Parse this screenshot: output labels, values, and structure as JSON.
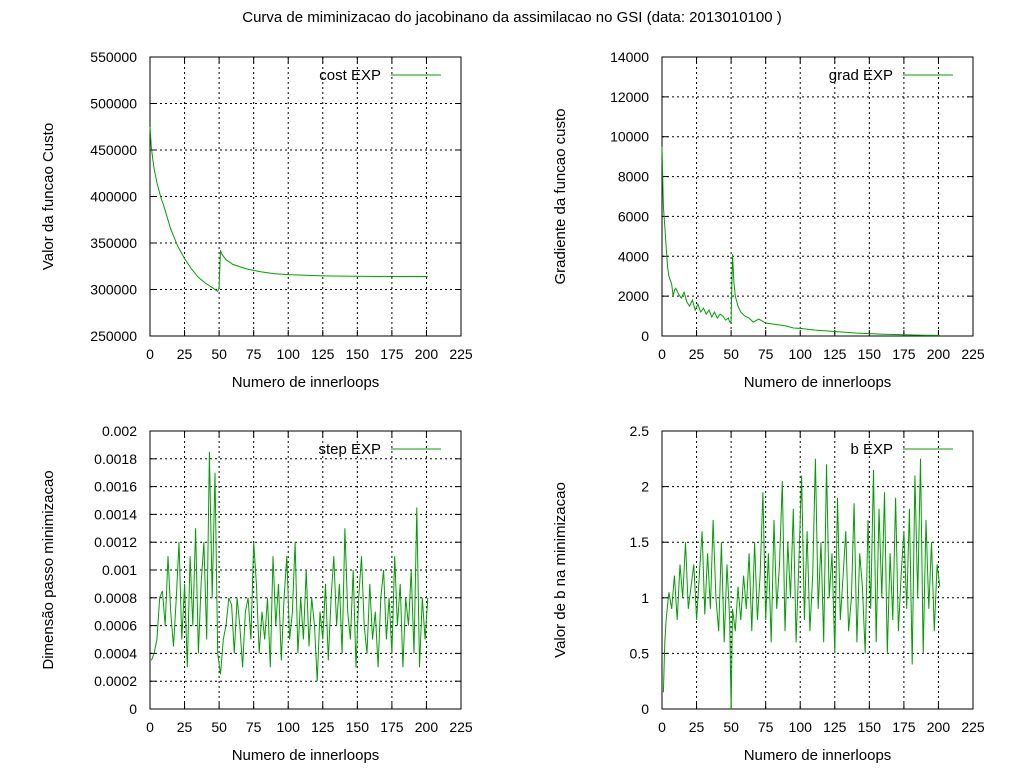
{
  "figure_title": "Curva de miminizacao do jacobinano da assimilacao no GSI (data: 2013010100 )",
  "colors": {
    "series": "#00a000",
    "axes": "#000000",
    "background": "#ffffff"
  },
  "chart_data": [
    {
      "id": "cost",
      "type": "line",
      "title": "",
      "xlabel": "Numero de innerloops",
      "ylabel": "Valor da funcao Custo",
      "xlim": [
        0,
        225
      ],
      "ylim": [
        250000,
        550000
      ],
      "xticks": [
        0,
        25,
        50,
        75,
        100,
        125,
        150,
        175,
        200,
        225
      ],
      "yticks": [
        250000,
        300000,
        350000,
        400000,
        450000,
        500000,
        550000
      ],
      "ytick_labels": [
        "250000",
        "300000",
        "350000",
        "400000",
        "450000",
        "500000",
        "550000"
      ],
      "grid": true,
      "legend_position": "top-right",
      "series": [
        {
          "name": "cost EXP",
          "x": [
            0,
            1,
            2,
            3,
            5,
            8,
            10,
            15,
            20,
            25,
            30,
            35,
            40,
            45,
            49,
            50,
            51,
            52,
            55,
            60,
            70,
            80,
            90,
            100,
            110,
            120,
            130,
            150,
            175,
            201
          ],
          "y": [
            475000,
            452000,
            440000,
            430000,
            415000,
            398000,
            390000,
            365000,
            347000,
            333000,
            322000,
            313000,
            307000,
            302000,
            298000,
            302000,
            342000,
            338000,
            332000,
            327000,
            322000,
            319000,
            317000,
            316000,
            315500,
            315000,
            314500,
            314200,
            314000,
            314000
          ]
        }
      ]
    },
    {
      "id": "grad",
      "type": "line",
      "title": "",
      "xlabel": "Numero de innerloops",
      "ylabel": "Gradiente da funcao custo",
      "xlim": [
        0,
        225
      ],
      "ylim": [
        0,
        14000
      ],
      "xticks": [
        0,
        25,
        50,
        75,
        100,
        125,
        150,
        175,
        200,
        225
      ],
      "yticks": [
        0,
        2000,
        4000,
        6000,
        8000,
        10000,
        12000,
        14000
      ],
      "ytick_labels": [
        "0",
        "2000",
        "4000",
        "6000",
        "8000",
        "10000",
        "12000",
        "14000"
      ],
      "grid": true,
      "legend_position": "top-right",
      "series": [
        {
          "name": "grad EXP",
          "x": [
            0,
            1,
            2,
            3,
            4,
            5,
            6,
            7,
            8,
            9,
            10,
            12,
            14,
            16,
            18,
            20,
            22,
            24,
            26,
            28,
            30,
            32,
            34,
            36,
            38,
            40,
            42,
            44,
            46,
            48,
            49,
            50,
            51,
            52,
            53,
            55,
            57,
            60,
            63,
            66,
            70,
            75,
            80,
            85,
            90,
            95,
            100,
            110,
            120,
            130,
            140,
            150,
            160,
            175,
            190,
            201
          ],
          "y": [
            9500,
            6500,
            5500,
            4500,
            3500,
            3000,
            2800,
            2600,
            2000,
            2300,
            2400,
            2100,
            1900,
            2200,
            1700,
            1500,
            1800,
            1300,
            1600,
            1200,
            1400,
            1100,
            1300,
            950,
            1200,
            900,
            1100,
            1000,
            800,
            900,
            700,
            750,
            4100,
            2700,
            2000,
            1500,
            1200,
            1000,
            900,
            700,
            850,
            650,
            600,
            550,
            500,
            400,
            380,
            300,
            250,
            200,
            150,
            120,
            90,
            60,
            40,
            30
          ]
        }
      ]
    },
    {
      "id": "step",
      "type": "line",
      "title": "",
      "xlabel": "Numero de innerloops",
      "ylabel": "Dimensão passo minimizacao",
      "xlim": [
        0,
        225
      ],
      "ylim": [
        0,
        0.002
      ],
      "xticks": [
        0,
        25,
        50,
        75,
        100,
        125,
        150,
        175,
        200,
        225
      ],
      "yticks": [
        0,
        0.0002,
        0.0004,
        0.0006,
        0.0008,
        0.001,
        0.0012,
        0.0014,
        0.0016,
        0.0018,
        0.002
      ],
      "ytick_labels": [
        "0",
        "0.0002",
        "0.0004",
        "0.0006",
        "0.0008",
        "0.001",
        "0.0012",
        "0.0014",
        "0.0016",
        "0.0018",
        "0.002"
      ],
      "grid": true,
      "legend_position": "top-right",
      "series": [
        {
          "name": "step EXP",
          "x": [
            1,
            3,
            5,
            7,
            9,
            11,
            13,
            15,
            17,
            19,
            21,
            23,
            25,
            27,
            29,
            31,
            33,
            35,
            37,
            39,
            41,
            43,
            45,
            47,
            49,
            51,
            53,
            55,
            57,
            59,
            61,
            63,
            65,
            67,
            69,
            71,
            73,
            75,
            77,
            79,
            81,
            83,
            85,
            87,
            89,
            91,
            93,
            95,
            97,
            99,
            101,
            103,
            105,
            107,
            109,
            111,
            113,
            115,
            117,
            119,
            121,
            123,
            125,
            127,
            129,
            131,
            133,
            135,
            137,
            139,
            141,
            143,
            145,
            147,
            149,
            151,
            153,
            155,
            157,
            159,
            161,
            163,
            165,
            167,
            169,
            171,
            173,
            175,
            177,
            179,
            181,
            183,
            185,
            187,
            189,
            191,
            193,
            195,
            197,
            199,
            201
          ],
          "y": [
            0.00035,
            0.0004,
            0.0005,
            0.0008,
            0.00085,
            0.0006,
            0.0011,
            0.0007,
            0.00045,
            0.0008,
            0.0012,
            0.0005,
            0.0009,
            0.0003,
            0.0011,
            0.0006,
            0.0013,
            0.0004,
            0.0009,
            0.0012,
            0.0005,
            0.00185,
            0.0008,
            0.0017,
            0.0004,
            0.00025,
            0.0005,
            0.0006,
            0.0008,
            0.00075,
            0.0004,
            0.0008,
            0.0006,
            0.0003,
            0.0007,
            0.0008,
            0.0005,
            0.0012,
            0.0009,
            0.0004,
            0.0007,
            0.0005,
            0.0008,
            0.0003,
            0.0011,
            0.0006,
            0.0009,
            0.00035,
            0.0008,
            0.0011,
            0.0005,
            0.0007,
            0.0012,
            0.0004,
            0.0008,
            0.0005,
            0.001,
            0.00045,
            0.0008,
            0.0006,
            0.0002,
            0.0007,
            0.0005,
            0.0009,
            0.00035,
            0.0008,
            0.0011,
            0.0006,
            0.0009,
            0.0004,
            0.0013,
            0.0007,
            0.0005,
            0.001,
            0.0003,
            0.0008,
            0.0011,
            0.0006,
            0.0004,
            0.0009,
            0.0005,
            0.0007,
            0.0003,
            0.0008,
            0.001,
            0.0005,
            0.0008,
            0.0004,
            0.0011,
            0.0006,
            0.0009,
            0.0003,
            0.0008,
            0.0006,
            0.001,
            0.0004,
            0.00145,
            0.0003,
            0.0008,
            0.0005,
            0.0008
          ]
        }
      ]
    },
    {
      "id": "b",
      "type": "line",
      "title": "",
      "xlabel": "Numero de innerloops",
      "ylabel": "Valor de b na minimizacao",
      "xlim": [
        0,
        225
      ],
      "ylim": [
        0,
        2.5
      ],
      "xticks": [
        0,
        25,
        50,
        75,
        100,
        125,
        150,
        175,
        200,
        225
      ],
      "yticks": [
        0,
        0.5,
        1,
        1.5,
        2,
        2.5
      ],
      "ytick_labels": [
        "0",
        "0.5",
        "1",
        "1.5",
        "2",
        "2.5"
      ],
      "grid": true,
      "legend_position": "top-right",
      "series": [
        {
          "name": "b EXP",
          "x": [
            1,
            2,
            3,
            5,
            7,
            9,
            11,
            13,
            15,
            17,
            19,
            21,
            23,
            25,
            27,
            29,
            31,
            33,
            35,
            37,
            39,
            41,
            43,
            45,
            47,
            49,
            50,
            51,
            53,
            55,
            57,
            59,
            61,
            63,
            65,
            67,
            69,
            71,
            73,
            75,
            77,
            79,
            81,
            83,
            85,
            87,
            89,
            91,
            93,
            95,
            97,
            99,
            101,
            103,
            105,
            107,
            109,
            111,
            113,
            115,
            117,
            119,
            121,
            123,
            125,
            127,
            129,
            131,
            133,
            135,
            137,
            139,
            141,
            143,
            145,
            147,
            149,
            151,
            153,
            155,
            157,
            159,
            161,
            163,
            165,
            167,
            169,
            171,
            173,
            175,
            177,
            179,
            181,
            183,
            185,
            187,
            189,
            191,
            193,
            195,
            197,
            199,
            201
          ],
          "y": [
            0.15,
            0.6,
            0.8,
            1.05,
            0.9,
            1.2,
            0.8,
            1.3,
            1.0,
            1.5,
            0.9,
            1.1,
            1.3,
            0.8,
            1.2,
            1.6,
            0.85,
            1.4,
            0.9,
            1.7,
            1.0,
            0.7,
            1.5,
            0.6,
            1.3,
            0.8,
            0.0,
            0.9,
            0.7,
            1.1,
            0.8,
            1.2,
            0.9,
            1.4,
            0.7,
            1.5,
            0.8,
            1.2,
            1.95,
            0.8,
            1.4,
            0.6,
            1.7,
            0.9,
            1.3,
            2.05,
            0.7,
            1.5,
            1.0,
            1.8,
            0.6,
            1.3,
            2.1,
            0.8,
            1.6,
            0.7,
            1.2,
            2.25,
            0.9,
            1.5,
            0.6,
            2.2,
            1.0,
            1.4,
            0.5,
            1.9,
            0.8,
            1.2,
            1.6,
            0.7,
            1.0,
            1.85,
            0.6,
            1.4,
            1.1,
            0.5,
            1.7,
            0.9,
            2.15,
            0.6,
            1.8,
            1.0,
            1.95,
            0.5,
            1.4,
            0.8,
            1.9,
            0.7,
            1.2,
            1.6,
            0.9,
            1.8,
            0.4,
            2.1,
            1.0,
            2.25,
            0.5,
            1.7,
            0.9,
            1.5,
            0.7,
            1.3,
            1.1
          ]
        }
      ]
    }
  ]
}
